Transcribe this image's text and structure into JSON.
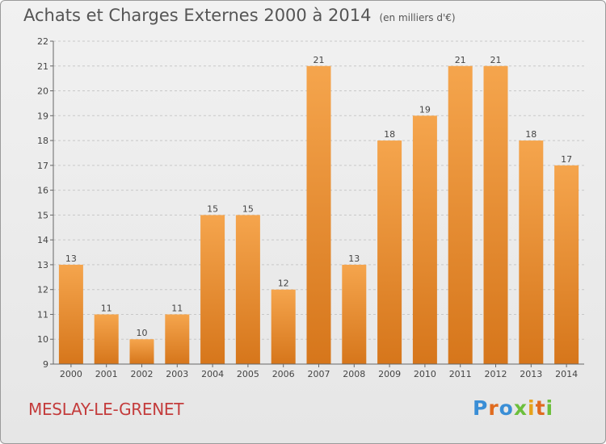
{
  "header": {
    "title": "Achats et Charges Externes 2000 à 2014",
    "subtitle": "(en milliers d'€)"
  },
  "footer": {
    "commune": "MESLAY-LE-GRENET",
    "logo_text": "Proxiti"
  },
  "colors": {
    "bar_light": "#f5a54d",
    "bar_dark": "#d6761b",
    "commune_text": "#c43c3c",
    "logo_letters": [
      "#3a8ed6",
      "#e06b1f",
      "#3a8ed6",
      "#6cbf3c",
      "#e6a21a",
      "#e06b1f",
      "#6cbf3c"
    ]
  },
  "chart_data": {
    "type": "bar",
    "categories": [
      "2000",
      "2001",
      "2002",
      "2003",
      "2004",
      "2005",
      "2006",
      "2007",
      "2008",
      "2009",
      "2010",
      "2011",
      "2012",
      "2013",
      "2014"
    ],
    "values": [
      13,
      11,
      10,
      11,
      15,
      15,
      12,
      21,
      13,
      18,
      19,
      21,
      21,
      18,
      17
    ],
    "title": "Achats et Charges Externes 2000 à 2014",
    "subtitle": "(en milliers d'€)",
    "xlabel": "",
    "ylabel": "",
    "ylim": [
      9,
      22
    ],
    "yticks": [
      9,
      10,
      11,
      12,
      13,
      14,
      15,
      16,
      17,
      18,
      19,
      20,
      21,
      22
    ],
    "grid": "horizontal dashed",
    "legend": "none"
  }
}
